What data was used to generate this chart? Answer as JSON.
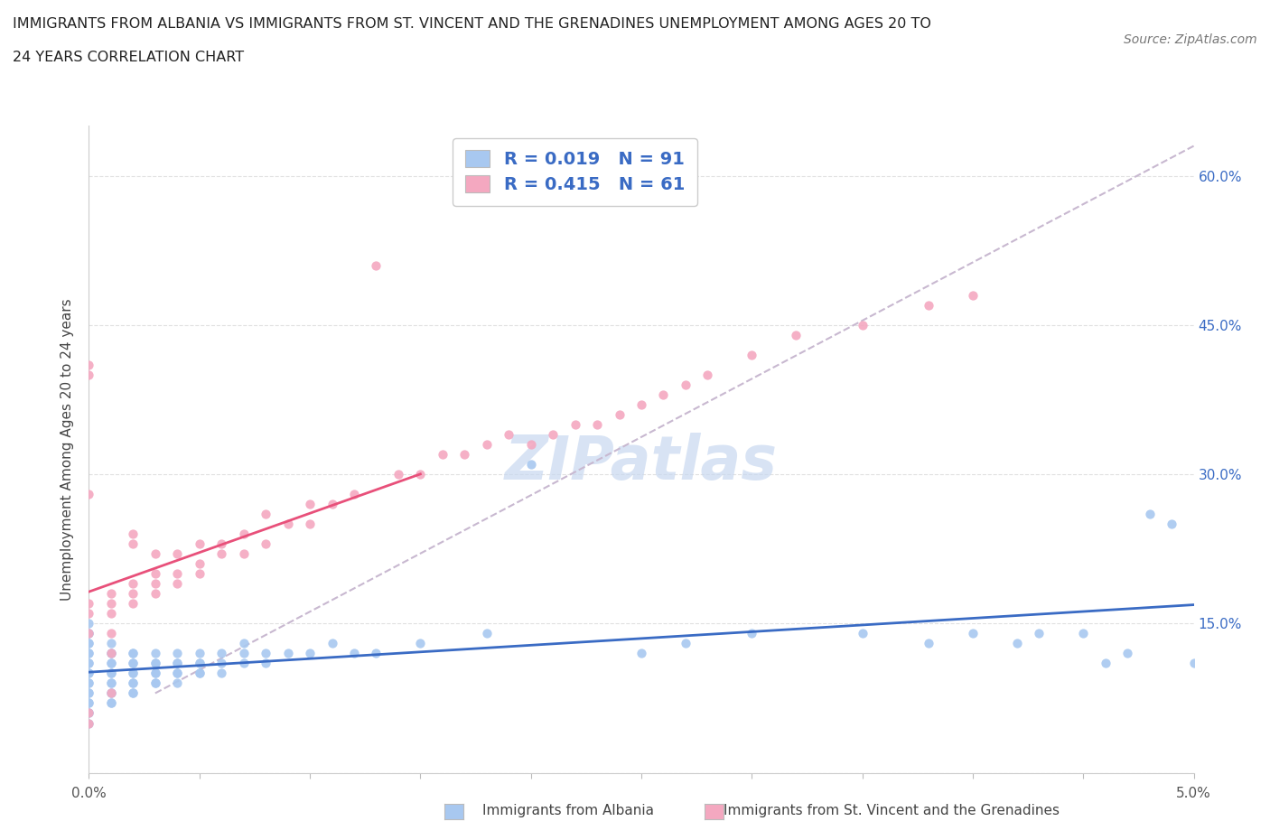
{
  "title_line1": "IMMIGRANTS FROM ALBANIA VS IMMIGRANTS FROM ST. VINCENT AND THE GRENADINES UNEMPLOYMENT AMONG AGES 20 TO",
  "title_line2": "24 YEARS CORRELATION CHART",
  "source": "Source: ZipAtlas.com",
  "ylabel": "Unemployment Among Ages 20 to 24 years",
  "albania_R": 0.019,
  "albania_N": 91,
  "stvincent_R": 0.415,
  "stvincent_N": 61,
  "legend_label_albania": "Immigrants from Albania",
  "legend_label_stvincent": "Immigrants from St. Vincent and the Grenadines",
  "color_albania": "#a8c8f0",
  "color_stvincent": "#f4a8c0",
  "color_albania_line": "#3a6bc4",
  "color_stvincent_line": "#e8507a",
  "color_trend_dash": "#c8b8d0",
  "xlim": [
    0.0,
    0.05
  ],
  "ylim": [
    0.0,
    0.65
  ],
  "ytick_vals": [
    0.0,
    0.15,
    0.3,
    0.45,
    0.6
  ],
  "ytick_labels_right": [
    "",
    "15.0%",
    "30.0%",
    "45.0%",
    "60.0%"
  ],
  "albania_x": [
    0.0,
    0.0,
    0.0,
    0.0,
    0.0,
    0.0,
    0.0,
    0.0,
    0.0,
    0.0,
    0.0,
    0.0,
    0.0,
    0.0,
    0.0,
    0.0,
    0.0,
    0.0,
    0.0,
    0.0,
    0.001,
    0.001,
    0.001,
    0.001,
    0.001,
    0.001,
    0.001,
    0.001,
    0.001,
    0.001,
    0.001,
    0.001,
    0.001,
    0.002,
    0.002,
    0.002,
    0.002,
    0.002,
    0.002,
    0.002,
    0.002,
    0.002,
    0.002,
    0.003,
    0.003,
    0.003,
    0.003,
    0.003,
    0.003,
    0.003,
    0.004,
    0.004,
    0.004,
    0.004,
    0.004,
    0.004,
    0.005,
    0.005,
    0.005,
    0.005,
    0.005,
    0.006,
    0.006,
    0.006,
    0.007,
    0.007,
    0.007,
    0.008,
    0.008,
    0.009,
    0.01,
    0.011,
    0.012,
    0.013,
    0.015,
    0.018,
    0.02,
    0.025,
    0.027,
    0.03,
    0.035,
    0.038,
    0.04,
    0.042,
    0.043,
    0.045,
    0.046,
    0.047,
    0.048,
    0.049,
    0.05
  ],
  "albania_y": [
    0.05,
    0.06,
    0.07,
    0.08,
    0.09,
    0.1,
    0.11,
    0.12,
    0.13,
    0.14,
    0.06,
    0.07,
    0.08,
    0.09,
    0.1,
    0.11,
    0.12,
    0.13,
    0.14,
    0.15,
    0.07,
    0.08,
    0.09,
    0.1,
    0.11,
    0.12,
    0.13,
    0.07,
    0.08,
    0.09,
    0.1,
    0.11,
    0.12,
    0.08,
    0.09,
    0.1,
    0.11,
    0.12,
    0.08,
    0.09,
    0.1,
    0.11,
    0.12,
    0.09,
    0.1,
    0.11,
    0.12,
    0.09,
    0.1,
    0.11,
    0.09,
    0.1,
    0.11,
    0.12,
    0.1,
    0.11,
    0.1,
    0.11,
    0.12,
    0.1,
    0.11,
    0.1,
    0.11,
    0.12,
    0.11,
    0.12,
    0.13,
    0.11,
    0.12,
    0.12,
    0.12,
    0.13,
    0.12,
    0.12,
    0.13,
    0.14,
    0.31,
    0.12,
    0.13,
    0.14,
    0.14,
    0.13,
    0.14,
    0.13,
    0.14,
    0.14,
    0.11,
    0.12,
    0.26,
    0.25,
    0.11
  ],
  "stvincent_x": [
    0.0,
    0.0,
    0.0,
    0.0,
    0.0,
    0.0,
    0.0,
    0.0,
    0.001,
    0.001,
    0.001,
    0.001,
    0.001,
    0.001,
    0.002,
    0.002,
    0.002,
    0.002,
    0.002,
    0.003,
    0.003,
    0.003,
    0.003,
    0.004,
    0.004,
    0.004,
    0.005,
    0.005,
    0.005,
    0.006,
    0.006,
    0.007,
    0.007,
    0.008,
    0.008,
    0.009,
    0.01,
    0.01,
    0.011,
    0.012,
    0.013,
    0.014,
    0.015,
    0.016,
    0.017,
    0.018,
    0.019,
    0.02,
    0.021,
    0.022,
    0.023,
    0.024,
    0.025,
    0.026,
    0.027,
    0.028,
    0.03,
    0.032,
    0.035,
    0.038,
    0.04
  ],
  "stvincent_y": [
    0.14,
    0.16,
    0.17,
    0.28,
    0.4,
    0.41,
    0.06,
    0.05,
    0.12,
    0.14,
    0.16,
    0.17,
    0.18,
    0.08,
    0.17,
    0.18,
    0.19,
    0.23,
    0.24,
    0.18,
    0.19,
    0.2,
    0.22,
    0.19,
    0.2,
    0.22,
    0.2,
    0.21,
    0.23,
    0.22,
    0.23,
    0.22,
    0.24,
    0.23,
    0.26,
    0.25,
    0.25,
    0.27,
    0.27,
    0.28,
    0.51,
    0.3,
    0.3,
    0.32,
    0.32,
    0.33,
    0.34,
    0.33,
    0.34,
    0.35,
    0.35,
    0.36,
    0.37,
    0.38,
    0.39,
    0.4,
    0.42,
    0.44,
    0.45,
    0.47,
    0.48
  ],
  "watermark_text": "ZIPatlas",
  "watermark_color": "#c8d8f0",
  "grid_color": "#e0e0e0"
}
